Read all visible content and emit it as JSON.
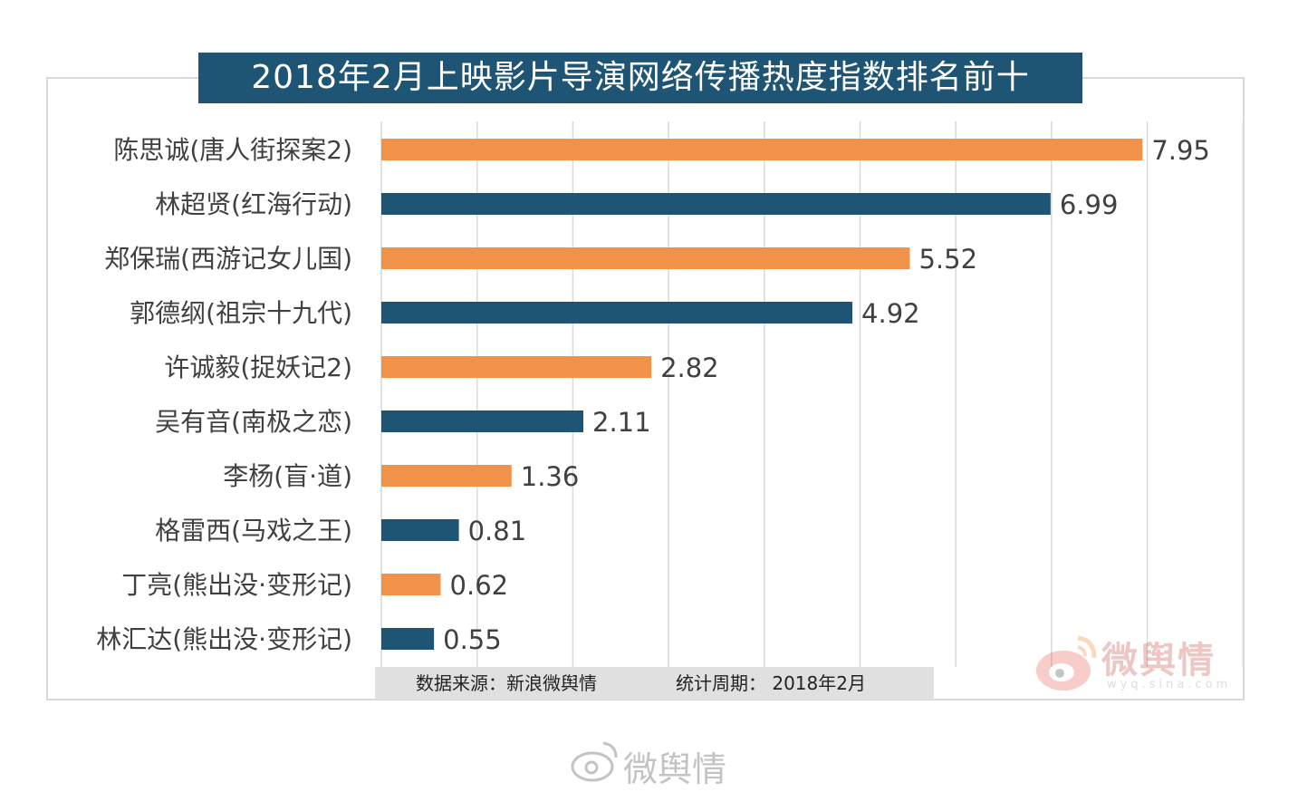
{
  "colors": {
    "title_bg": "#1e5474",
    "bar_orange": "#f0924a",
    "bar_blue": "#1e5474",
    "grid": "#d9d9d9",
    "text": "#404040"
  },
  "title": "2018年2月上映影片导演网络传播热度指数排名前十",
  "source": {
    "label": "数据来源：新浪微舆情",
    "period": "统计周期：  2018年2月"
  },
  "watermark": {
    "brand": "微舆情",
    "domain": "wyq.sina.com",
    "footer_brand": "微舆情"
  },
  "chart_data": {
    "type": "bar",
    "orientation": "horizontal",
    "title": "2018年2月上映影片导演网络传播热度指数排名前十",
    "categories": [
      "陈思诚(唐人街探案2)",
      "林超贤(红海行动)",
      "郑保瑞(西游记女儿国)",
      "郭德纲(祖宗十九代)",
      "许诚毅(捉妖记2)",
      "吴有音(南极之恋)",
      "李杨(盲·道)",
      "格雷西(马戏之王)",
      "丁亮(熊出没·变形记)",
      "林汇达(熊出没·变形记)"
    ],
    "values": [
      7.95,
      6.99,
      5.52,
      4.92,
      2.82,
      2.11,
      1.36,
      0.81,
      0.62,
      0.55
    ],
    "bar_colors": [
      "#f0924a",
      "#1e5474",
      "#f0924a",
      "#1e5474",
      "#f0924a",
      "#1e5474",
      "#f0924a",
      "#1e5474",
      "#f0924a",
      "#1e5474"
    ],
    "data_labels": [
      "7.95",
      "6.99",
      "5.52",
      "4.92",
      "2.82",
      "2.11",
      "1.36",
      "0.81",
      "0.62",
      "0.55"
    ],
    "xlim": [
      0,
      9
    ],
    "grid": true,
    "legend": "none"
  }
}
